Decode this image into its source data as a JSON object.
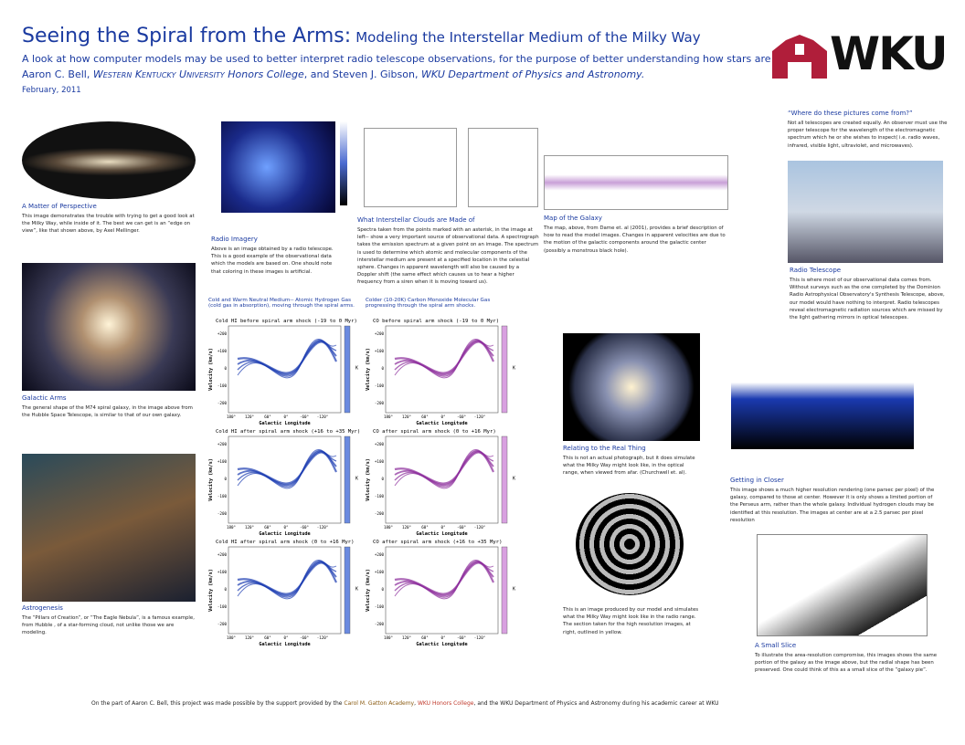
{
  "header": {
    "title": "Seeing the Spiral from the Arms:",
    "title_sub": "Modeling the Interstellar Medium of the Milky Way",
    "subtitle": "A look at how computer models may be used to better interpret radio telescope observations, for the purpose of better understanding how stars are born.",
    "authors": [
      "Aaron C. Bell, ",
      "Western Kentucky University",
      " Honors College",
      ", and Steven J. Gibson, ",
      "WKU Department of Physics and Astronomy."
    ],
    "date": "February,  2011",
    "logo": "WKU"
  },
  "sections": [
    {
      "heading": "A Matter of Perspective",
      "body": "This image demonstrates the trouble with trying to get a good look at the Milky Way, while inside of it. The best we can get is an “edge on view”, like that shown above, by Axel Mellinger."
    },
    {
      "heading": "Radio Imagery",
      "body": "Above is an image obtained by a radio telescope. This is a good example of the observational data which the models are based on. One should note that coloring in these images is artificial."
    },
    {
      "heading": "What Interstellar Clouds are Made of",
      "body": "Spectra taken from the points marked with an asterisk, in the image at left-- show a very important source of observational data. A spectrograph takes the emission spectrum at a given point on an image. The spectrum is used to determine which atomic and molecular components of the interstellar medium are present at a specified location in the celestial sphere. Changes in apparent wavelength will also be caused by a Doppler shift (the same effect which causes us to hear a higher frequency from a siren when it is moving toward us)."
    },
    {
      "heading": "Map of the Galaxy",
      "body": "The map, above, from Dame et. al (2001), provides a brief description of how to read the model images. Changes in apparent velocities are due to the motion of the galactic components around the galactic center (possibly a monstrous black hole)."
    },
    {
      "heading": "“Where do these pictures come from?”",
      "body": "Not all telescopes are created equally. An observer must use the proper telescope for the wavelength of the electromagnetic spectrum which he or she wishes to inspect( i.e. radio waves, infrared, visible light, ultraviolet, and microwaves)."
    },
    {
      "heading": "Radio Telescope",
      "body": "This is where most of our observational data comes from. Without surveys such as the one completed by the Dominion Radio Astrophysical Observatory's Synthesis Telescope, above, our model would have nothing to interpret. Radio telescopes reveal electromagnetic radiation sources which are missed by the light gathering mirrors in optical telescopes."
    },
    {
      "heading": "Galactic Arms",
      "body": "The general shape of the M74 spiral galaxy, in the image above from the Hubble Space Telescope, is similar to that of our own galaxy."
    },
    {
      "heading": "Astrogenesis",
      "body": "The “Pillars of Creation”, or “The Eagle Nebula”, is a famous example, from Hubble , of a star-forming cloud, not unlike those we are modeling."
    },
    {
      "heading": "Relating to the Real Thing",
      "body": "This is not an actual photograph, but it does simulate what the Milky Way might look like, in the optical range, when viewed from afar. (Churchwell et. al)."
    },
    {
      "body": "This is an image produced by our model and simulates what the Milky Way might look like in the radio range. The section taken for the high resolution images, at right, outlined in yellow."
    },
    {
      "heading": "Getting in Closer",
      "body": "This image shows a much higher resolution rendering (one parsec per pixel) of the galaxy, compared to those at center. However it is only shows a limited portion of the Perseus arm, rather than the whole galaxy. Individual hydrogen clouds may be identified at this resolution. The images at center are at a 2.5 parsec per pixel resolution"
    },
    {
      "heading": "A Small Slice",
      "body": "To illustrate the area-resolution compromise, this images shows the same portion of the galaxy as the image above, but the radial shape has been preserved.  One could think of this as a small slice of the “galaxy pie”."
    }
  ],
  "columns": [
    "Cold and Warm Neutral Medium-- Atomic Hydrogen Gas (cold gas in absorption), moving through the spiral arms.",
    "Colder (10-20K) Carbon Monoxide Molecular Gas progressing through the spiral arm shocks."
  ],
  "panels": {
    "titles": [
      "Cold HI before spiral arm shock (-19 to 0 Myr)",
      "Cold HI after spiral arm shock (+16 to +35 Myr)",
      "Cold HI after spiral arm shock (0 to +16 Myr)",
      "CO before spiral arm shock (-19 to 0 Myr)",
      "CO after spiral arm shock (0 to +16 Myr)",
      "CO after spiral arm shock (+16 to +35 Myr)"
    ],
    "xlabel": "Galactic Longitude",
    "ylabel": "Velocity (km/s)",
    "unit": "K",
    "xticks": [
      "180°",
      "120°",
      "60°",
      "0°",
      "-60°",
      "-120°"
    ],
    "yticks": [
      "+200",
      "+100",
      "0",
      "-100",
      "-200"
    ]
  },
  "footer": [
    "On the part of Aaron C. Bell, this project was made possible by the support provided by the ",
    "Carol M. Gatton Academy",
    ", ",
    "WKU Honors College",
    ", and the WKU Department of Physics and Astronomy during his academic career at WKU"
  ]
}
